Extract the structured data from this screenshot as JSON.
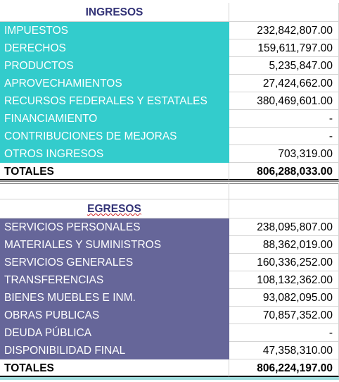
{
  "ingresos": {
    "title": "INGRESOS",
    "rows": [
      [
        "IMPUESTOS",
        "232,842,807.00"
      ],
      [
        "DERECHOS",
        "159,611,797.00"
      ],
      [
        "PRODUCTOS",
        "5,235,847.00"
      ],
      [
        "APROVECHAMIENTOS",
        "27,424,662.00"
      ],
      [
        "RECURSOS FEDERALES Y ESTATALES",
        "380,469,601.00"
      ],
      [
        "FINANCIAMIENTO",
        "-"
      ],
      [
        "CONTRIBUCIONES DE MEJORAS",
        "-"
      ],
      [
        "OTROS INGRESOS",
        "703,319.00"
      ]
    ],
    "total": [
      "TOTALES",
      "806,288,033.00"
    ]
  },
  "egresos": {
    "title": "EGRESOS",
    "rows": [
      [
        "SERVICIOS PERSONALES",
        "238,095,807.00"
      ],
      [
        "MATERIALES Y SUMINISTROS",
        "88,362,019.00"
      ],
      [
        "SERVICIOS GENERALES",
        "160,336,252.00"
      ],
      [
        "TRANSFERENCIAS",
        "108,132,362.00"
      ],
      [
        "BIENES MUEBLES E INM.",
        "93,082,095.00"
      ],
      [
        "OBRAS PUBLICAS",
        "70,857,352.00"
      ],
      [
        "DEUDA PÚBLICA",
        "-"
      ],
      [
        "DISPONIBILIDAD FINAL",
        "47,358,310.00"
      ]
    ],
    "total": [
      "TOTALES",
      "806,224,197.00"
    ]
  }
}
